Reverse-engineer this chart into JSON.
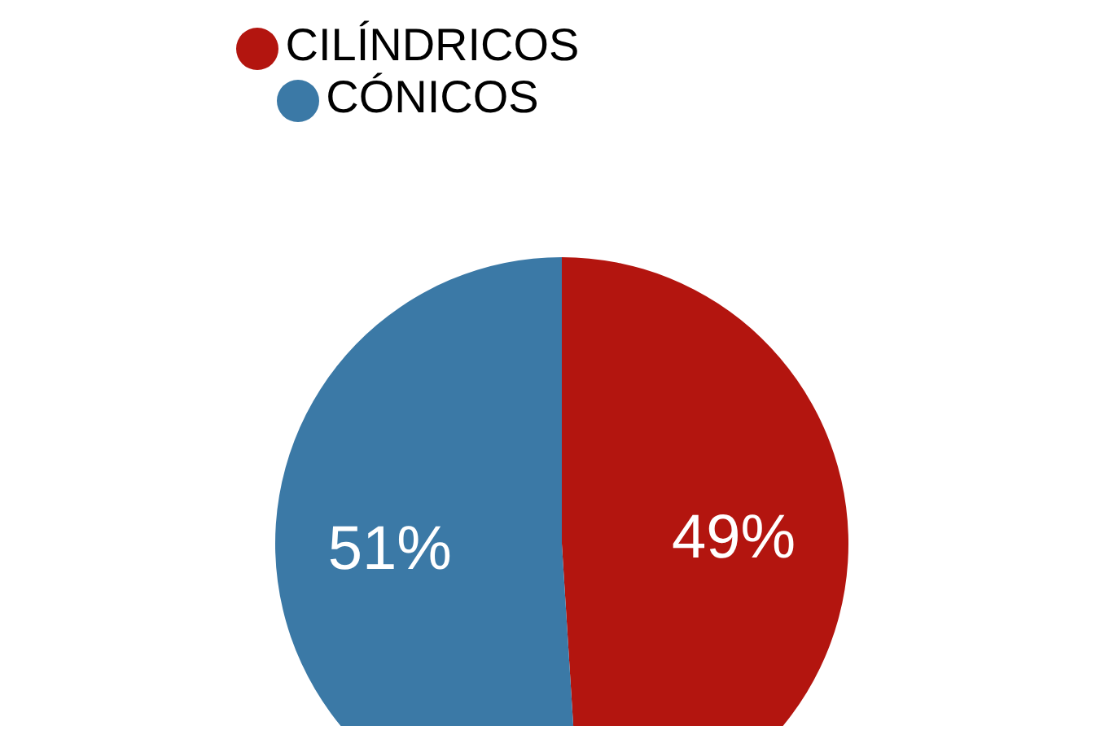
{
  "chart_data": {
    "type": "pie",
    "categories": [
      "CILÍNDRICOS",
      "CÓNICOS"
    ],
    "values": [
      49,
      51
    ],
    "colors": [
      "#b3150f",
      "#3b79a6"
    ],
    "value_labels": [
      "49%",
      "51%"
    ],
    "legend": "top"
  }
}
